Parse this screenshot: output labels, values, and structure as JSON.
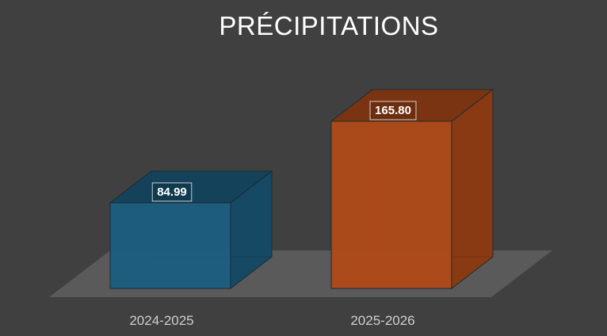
{
  "chart_data": {
    "type": "bar",
    "title": "PRÉCIPITATIONS",
    "categories": [
      "2024-2025",
      "2025-2026"
    ],
    "values": [
      84.99,
      165.8
    ],
    "value_labels": [
      "84.99",
      "165.80"
    ],
    "colors": [
      "#1b5e80",
      "#b04a18"
    ],
    "xlabel": "",
    "ylabel": "",
    "ylim": [
      0,
      165.8
    ],
    "grid": false,
    "legend": "none",
    "style": "3d-column"
  }
}
